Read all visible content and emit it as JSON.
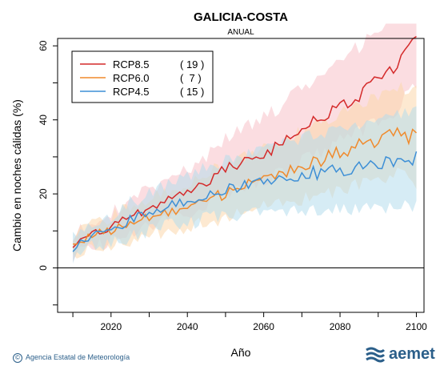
{
  "chart_data": {
    "type": "line",
    "title": "GALICIA-COSTA",
    "subtitle": "ANUAL",
    "xlabel": "Año",
    "ylabel": "Cambio en noches cálidas (%)",
    "xlim": [
      2006,
      2102
    ],
    "ylim": [
      -12,
      62
    ],
    "xticks": [
      2020,
      2040,
      2060,
      2080,
      2100
    ],
    "yticks": [
      0,
      20,
      40,
      60
    ],
    "zero_line": 0,
    "legend_position": "top-left",
    "series": [
      {
        "name": "RCP8.5",
        "count": "( 19 )",
        "color": "#d42a2a",
        "band_color": "#f7c1c8",
        "anchors": [
          [
            2010,
            6
          ],
          [
            2015,
            9
          ],
          [
            2020,
            11
          ],
          [
            2025,
            14
          ],
          [
            2030,
            16
          ],
          [
            2035,
            18
          ],
          [
            2040,
            20
          ],
          [
            2045,
            23
          ],
          [
            2050,
            27
          ],
          [
            2055,
            29
          ],
          [
            2060,
            31
          ],
          [
            2065,
            34
          ],
          [
            2070,
            38
          ],
          [
            2075,
            40
          ],
          [
            2080,
            44
          ],
          [
            2085,
            47
          ],
          [
            2090,
            51
          ],
          [
            2095,
            54
          ],
          [
            2098,
            60
          ],
          [
            2100,
            61
          ]
        ],
        "band_low_offset": 9,
        "band_high_offset": 12
      },
      {
        "name": "RCP6.0",
        "count": "(  7 )",
        "color": "#f08a2c",
        "band_color": "#fbd7ac",
        "anchors": [
          [
            2010,
            6
          ],
          [
            2015,
            9
          ],
          [
            2020,
            10
          ],
          [
            2025,
            12
          ],
          [
            2030,
            14
          ],
          [
            2035,
            15
          ],
          [
            2040,
            17
          ],
          [
            2045,
            19
          ],
          [
            2050,
            20
          ],
          [
            2055,
            22
          ],
          [
            2060,
            24
          ],
          [
            2065,
            26
          ],
          [
            2070,
            27
          ],
          [
            2075,
            29
          ],
          [
            2080,
            31
          ],
          [
            2085,
            33
          ],
          [
            2090,
            34
          ],
          [
            2095,
            37
          ],
          [
            2100,
            35
          ]
        ],
        "band_low_offset": 9,
        "band_high_offset": 10
      },
      {
        "name": "RCP4.5",
        "count": "( 15 )",
        "color": "#3d8fd6",
        "band_color": "#b4dcec",
        "anchors": [
          [
            2010,
            5
          ],
          [
            2015,
            9
          ],
          [
            2020,
            10
          ],
          [
            2025,
            13
          ],
          [
            2030,
            15
          ],
          [
            2035,
            17
          ],
          [
            2040,
            18
          ],
          [
            2045,
            20
          ],
          [
            2050,
            21
          ],
          [
            2055,
            22
          ],
          [
            2060,
            23
          ],
          [
            2065,
            24
          ],
          [
            2070,
            25
          ],
          [
            2075,
            26
          ],
          [
            2080,
            26
          ],
          [
            2085,
            27
          ],
          [
            2090,
            28
          ],
          [
            2095,
            28
          ],
          [
            2100,
            30
          ]
        ],
        "band_low_offset": 10,
        "band_high_offset": 11
      }
    ]
  },
  "footer": {
    "credit": "Agencia Estatal de Meteorología",
    "logo_text": "aemet"
  }
}
